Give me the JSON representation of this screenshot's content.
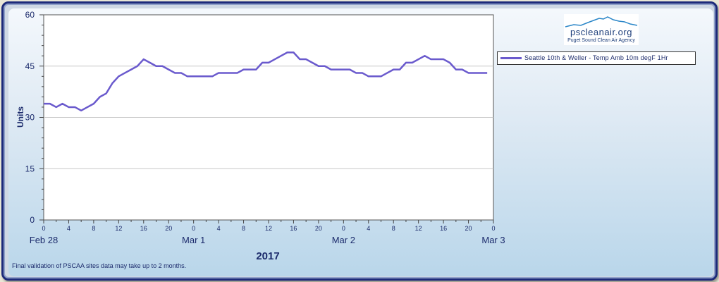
{
  "footer": {
    "disclaimer": "Final validation of PSCAA sites data may take up to 2 months."
  },
  "logo": {
    "text": "pscleanair.org",
    "subtitle": "Puget Sound Clean Air Agency"
  },
  "chart_data": {
    "type": "line",
    "ylabel": "Units",
    "xlabel": "2017",
    "ylim": [
      0,
      60
    ],
    "y_ticks": [
      "0",
      "15",
      "30",
      "45",
      "60"
    ],
    "x_hour_ticks": [
      "0",
      "4",
      "8",
      "12",
      "16",
      "20",
      "0",
      "4",
      "8",
      "12",
      "16",
      "20",
      "0",
      "4",
      "8",
      "12",
      "16",
      "20",
      "0"
    ],
    "date_labels": [
      "Feb 28",
      "Mar 1",
      "Mar 2",
      "Mar 3"
    ],
    "legend_position": "right",
    "grid": true,
    "colors": {
      "series": "#6a5acd",
      "axis_text": "#1b2a6b"
    },
    "series": [
      {
        "name": "Seattle 10th & Weller - Temp Amb 10m  degF  1Hr",
        "values": [
          34,
          34,
          33,
          34,
          33,
          33,
          32,
          33,
          34,
          36,
          37,
          40,
          42,
          43,
          44,
          45,
          47,
          46,
          45,
          45,
          44,
          43,
          43,
          42,
          42,
          42,
          42,
          42,
          43,
          43,
          43,
          43,
          44,
          44,
          44,
          46,
          46,
          47,
          48,
          49,
          49,
          47,
          47,
          46,
          45,
          45,
          44,
          44,
          44,
          44,
          43,
          43,
          42,
          42,
          42,
          43,
          44,
          44,
          46,
          46,
          47,
          48,
          47,
          47,
          47,
          46,
          44,
          44,
          43,
          43,
          43,
          43
        ]
      }
    ]
  }
}
